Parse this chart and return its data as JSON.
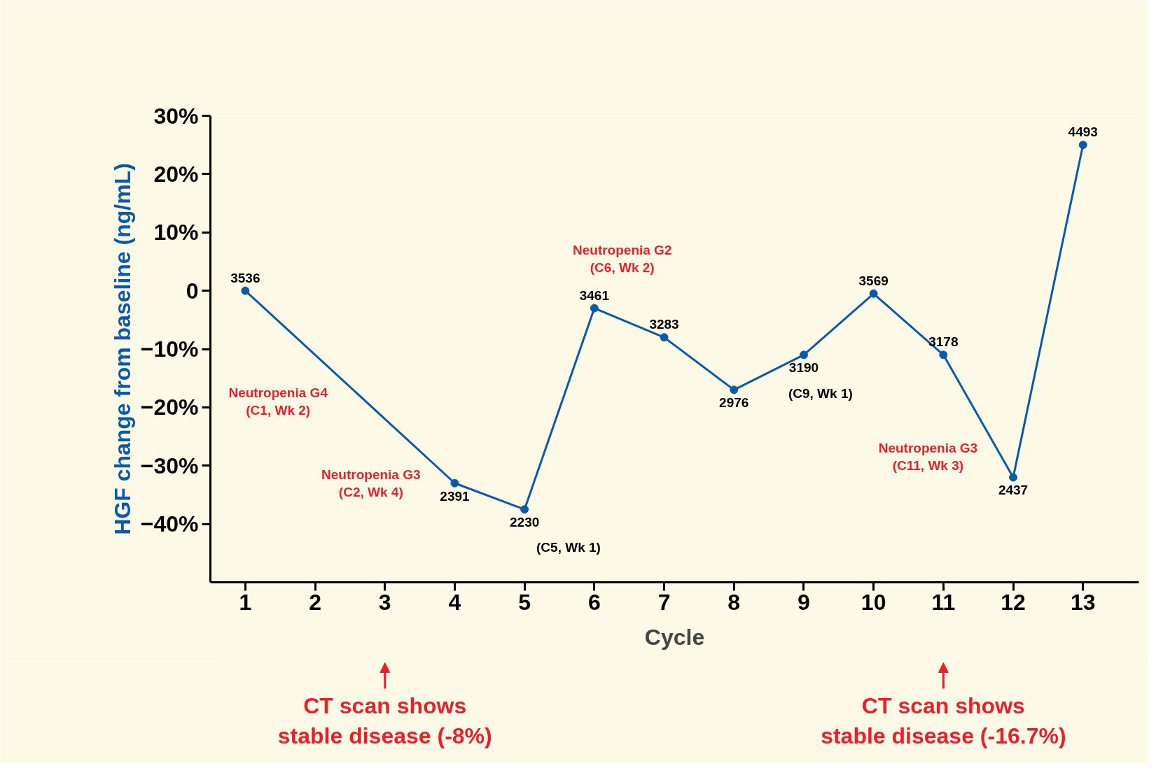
{
  "chart_data": {
    "type": "line",
    "xlabel": "Cycle",
    "ylabel": "HGF change from baseline (ng/mL)",
    "x": [
      1,
      4,
      5,
      6,
      7,
      8,
      9,
      10,
      11,
      12,
      13
    ],
    "series": [
      {
        "color": "#0a5aa8",
        "values": [
          0,
          -33,
          -37.5,
          -3,
          -8,
          -17,
          -11,
          -0.5,
          -11,
          -32,
          25
        ]
      }
    ],
    "xlim": [
      0.5,
      13.8
    ],
    "xticks": [
      1,
      2,
      3,
      4,
      5,
      6,
      7,
      8,
      9,
      10,
      11,
      12,
      13
    ],
    "ylim": [
      -50,
      30
    ],
    "yticks": [
      {
        "value": 30,
        "label": "30%"
      },
      {
        "value": 20,
        "label": "20%"
      },
      {
        "value": 10,
        "label": "10%"
      },
      0,
      {
        "value": -10,
        "label": "−10%"
      },
      {
        "value": -20,
        "label": "−20%"
      },
      {
        "value": -30,
        "label": "−30%"
      },
      {
        "value": -40,
        "label": "−40%"
      }
    ],
    "grid": false,
    "marker": "circle",
    "line_style": "solid",
    "annotations": [
      "Neutropenia G4\n(C1, Wk 2)",
      "Neutropenia G3\n(C2, Wk 4)",
      "(C5, Wk 1)",
      "Neutropenia G2\n(C6, Wk 2)",
      "(C9, Wk 1)",
      "Neutropenia G3\n(C11, Wk 3)",
      "CT scan shows\nstable disease (-8%)",
      "CT scan shows\nstable disease (-16.7%)",
      {
        "text": "3536",
        "x": 1,
        "y": 0
      },
      {
        "text": "2391",
        "x": 4,
        "y": -33
      },
      {
        "text": "2230",
        "x": 5,
        "y": -37.5
      },
      {
        "text": "3461",
        "x": 6,
        "y": -3
      },
      {
        "text": "3283",
        "x": 7,
        "y": -8
      },
      {
        "text": "2976",
        "x": 8,
        "y": -17
      },
      {
        "text": "3190",
        "x": 9,
        "y": -11
      },
      {
        "text": "3569",
        "x": 10,
        "y": -0.5
      },
      {
        "text": "3178",
        "x": 11,
        "y": -11
      },
      {
        "text": "2437",
        "x": 12,
        "y": -32
      },
      {
        "text": "4493",
        "x": 13,
        "y": 25
      }
    ]
  }
}
